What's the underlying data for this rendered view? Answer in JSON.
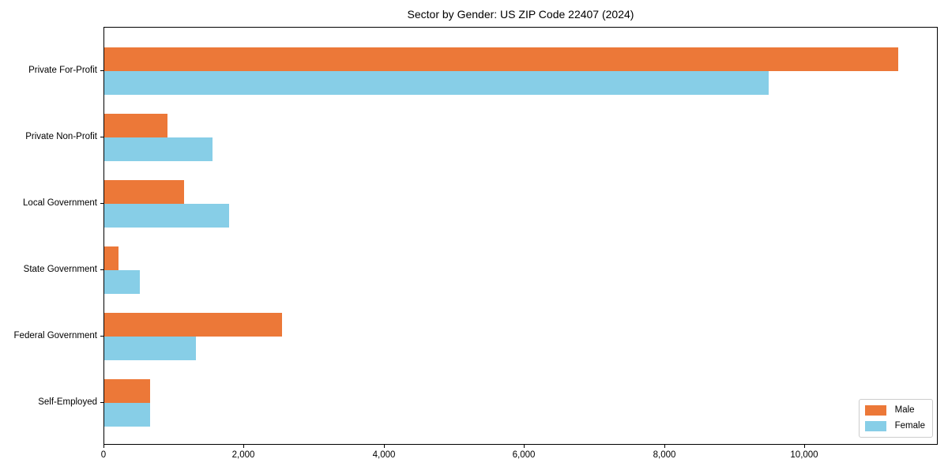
{
  "chart_data": {
    "type": "bar",
    "orientation": "horizontal",
    "title": "Sector by Gender: US ZIP Code 22407 (2024)",
    "categories": [
      "Private For-Profit",
      "Private Non-Profit",
      "Local Government",
      "State Government",
      "Federal Government",
      "Self-Employed"
    ],
    "series": [
      {
        "name": "Male",
        "color": "#EC7838",
        "values": [
          11330,
          900,
          1140,
          200,
          2540,
          650
        ]
      },
      {
        "name": "Female",
        "color": "#87CEE7",
        "values": [
          9480,
          1540,
          1780,
          510,
          1310,
          650
        ]
      }
    ],
    "xlabel": "",
    "ylabel": "",
    "xlim": [
      0,
      11900
    ],
    "xticks": [
      0,
      2000,
      4000,
      6000,
      8000,
      10000
    ],
    "xtick_labels": [
      "0",
      "2,000",
      "4,000",
      "6,000",
      "8,000",
      "10,000"
    ],
    "grid": false,
    "legend_position": "lower right",
    "spine_color": "#000000",
    "background_color": "#ffffff"
  }
}
